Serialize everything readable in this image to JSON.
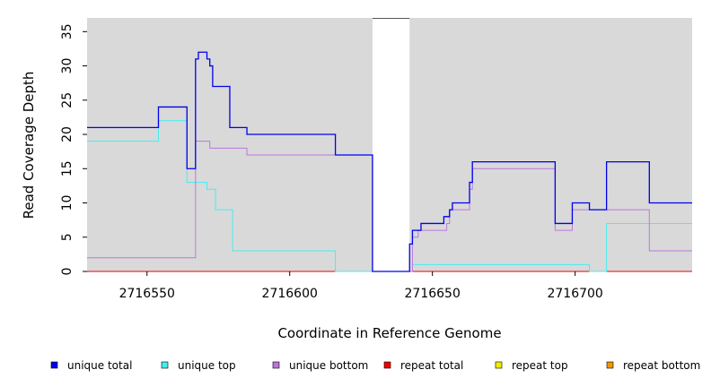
{
  "chart_data": {
    "type": "line",
    "title": "",
    "xlabel": "Coordinate in Reference Genome",
    "ylabel": "Read Coverage Depth",
    "xlim": [
      2716529,
      2716741
    ],
    "ylim": [
      0,
      37
    ],
    "xticks": [
      2716550,
      2716600,
      2716650,
      2716700
    ],
    "yticks": [
      0,
      5,
      10,
      15,
      20,
      25,
      30,
      35
    ],
    "xtick_labels": [
      "2716550",
      "2716600",
      "2716650",
      "2716700"
    ],
    "ytick_labels": [
      "0",
      "5",
      "10",
      "15",
      "20",
      "25",
      "30",
      "35"
    ],
    "background_color": "#d9d9d9",
    "gap_region": [
      2716629,
      2716642
    ],
    "line_style": "step",
    "legend_position": "bottom",
    "series": [
      {
        "name": "unique total",
        "color": "#0000ee",
        "points": [
          [
            2716529,
            21
          ],
          [
            2716554,
            24
          ],
          [
            2716564,
            15
          ],
          [
            2716567,
            31
          ],
          [
            2716568,
            32
          ],
          [
            2716571,
            31
          ],
          [
            2716572,
            30
          ],
          [
            2716573,
            27
          ],
          [
            2716579,
            21
          ],
          [
            2716585,
            20
          ],
          [
            2716616,
            17
          ],
          [
            2716629,
            0
          ],
          [
            2716642,
            4
          ],
          [
            2716643,
            6
          ],
          [
            2716646,
            7
          ],
          [
            2716654,
            8
          ],
          [
            2716656,
            9
          ],
          [
            2716657,
            10
          ],
          [
            2716663,
            13
          ],
          [
            2716664,
            16
          ],
          [
            2716693,
            7
          ],
          [
            2716699,
            10
          ],
          [
            2716705,
            9
          ],
          [
            2716711,
            16
          ],
          [
            2716726,
            10
          ],
          [
            2716741,
            10
          ]
        ]
      },
      {
        "name": "unique top",
        "color": "#44eeee",
        "points": [
          [
            2716529,
            19
          ],
          [
            2716554,
            22
          ],
          [
            2716564,
            13
          ],
          [
            2716571,
            12
          ],
          [
            2716574,
            9
          ],
          [
            2716580,
            3
          ],
          [
            2716616,
            0
          ],
          [
            2716643,
            1
          ],
          [
            2716705,
            0
          ],
          [
            2716711,
            7
          ],
          [
            2716741,
            7
          ]
        ]
      },
      {
        "name": "unique bottom",
        "color": "#bb77dd",
        "points": [
          [
            2716529,
            2
          ],
          [
            2716567,
            19
          ],
          [
            2716572,
            18
          ],
          [
            2716585,
            17
          ],
          [
            2716629,
            0
          ],
          [
            2716643,
            5
          ],
          [
            2716645,
            6
          ],
          [
            2716655,
            7
          ],
          [
            2716656,
            9
          ],
          [
            2716663,
            12
          ],
          [
            2716664,
            15
          ],
          [
            2716693,
            6
          ],
          [
            2716699,
            9
          ],
          [
            2716726,
            3
          ],
          [
            2716741,
            3
          ]
        ]
      },
      {
        "name": "repeat total",
        "color": "#ee0000",
        "points": [
          [
            2716529,
            0
          ],
          [
            2716741,
            0
          ]
        ]
      },
      {
        "name": "repeat top",
        "color": "#eeee00",
        "points": [
          [
            2716529,
            0
          ],
          [
            2716741,
            0
          ]
        ]
      },
      {
        "name": "repeat bottom",
        "color": "#ee9900",
        "points": [
          [
            2716529,
            0
          ],
          [
            2716741,
            0
          ]
        ]
      }
    ]
  }
}
